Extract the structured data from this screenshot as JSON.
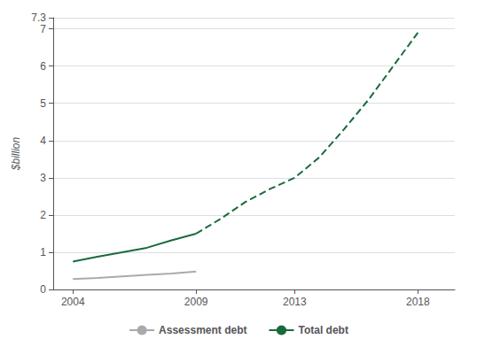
{
  "chart_data": {
    "type": "line",
    "ylabel": "$billion",
    "xlim": [
      2003.2,
      2019.5
    ],
    "xticks": [
      2004,
      2009,
      2013,
      2018
    ],
    "ylim": [
      0,
      7.3
    ],
    "yticks": [
      0,
      1,
      2,
      3,
      4,
      5,
      6,
      7
    ],
    "grid": true,
    "legend": "bottom",
    "series": [
      {
        "name": "Assessment debt",
        "color": "#aaaaaa",
        "line_style": "solid",
        "x": [
          2004,
          2005,
          2006,
          2007,
          2008,
          2009
        ],
        "values": [
          0.28,
          0.31,
          0.35,
          0.39,
          0.43,
          0.48
        ]
      },
      {
        "name": "Total debt",
        "color": "#1a6b3c",
        "line_style": "solid",
        "x": [
          2004,
          2005,
          2006,
          2007,
          2008,
          2009
        ],
        "values": [
          0.75,
          0.88,
          1.0,
          1.12,
          1.32,
          1.5
        ]
      },
      {
        "name": "Total debt",
        "color": "#1a6b3c",
        "line_style": "dashed",
        "x": [
          2009,
          2010,
          2011,
          2012,
          2013,
          2014,
          2015,
          2016,
          2017,
          2018
        ],
        "values": [
          1.5,
          1.9,
          2.35,
          2.7,
          3.0,
          3.55,
          4.3,
          5.1,
          6.0,
          6.9
        ]
      }
    ]
  }
}
